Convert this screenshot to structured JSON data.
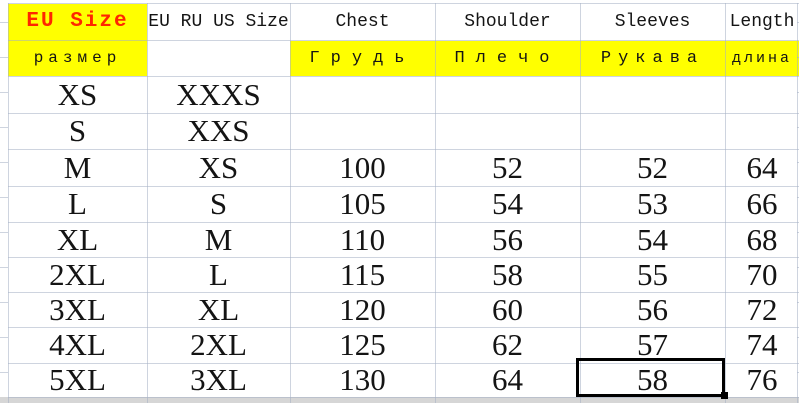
{
  "table": {
    "title_semantic": "clothing size chart",
    "header": {
      "eu_size": "EU Size",
      "eu_size_ru": "размер",
      "intl": "EU RU US Size",
      "chest": "Chest",
      "chest_ru": "Грудь",
      "shoulder": "Shoulder",
      "shoulder_ru": "Плечо",
      "sleeves": "Sleeves",
      "sleeves_ru": "Рукава",
      "length": "Length",
      "length_ru": "длина"
    },
    "rows": [
      {
        "eu": "XS",
        "intl": "XXXS",
        "chest": "",
        "shoulder": "",
        "sleeves": "",
        "length": ""
      },
      {
        "eu": "S",
        "intl": "XXS",
        "chest": "",
        "shoulder": "",
        "sleeves": "",
        "length": ""
      },
      {
        "eu": "M",
        "intl": "XS",
        "chest": "100",
        "shoulder": "52",
        "sleeves": "52",
        "length": "64"
      },
      {
        "eu": "L",
        "intl": "S",
        "chest": "105",
        "shoulder": "54",
        "sleeves": "53",
        "length": "66"
      },
      {
        "eu": "XL",
        "intl": "M",
        "chest": "110",
        "shoulder": "56",
        "sleeves": "54",
        "length": "68"
      },
      {
        "eu": "2XL",
        "intl": "L",
        "chest": "115",
        "shoulder": "58",
        "sleeves": "55",
        "length": "70"
      },
      {
        "eu": "3XL",
        "intl": "XL",
        "chest": "120",
        "shoulder": "60",
        "sleeves": "56",
        "length": "72"
      },
      {
        "eu": "4XL",
        "intl": "2XL",
        "chest": "125",
        "shoulder": "62",
        "sleeves": "57",
        "length": "74"
      },
      {
        "eu": "5XL",
        "intl": "3XL",
        "chest": "130",
        "shoulder": "64",
        "sleeves": "58",
        "length": "76"
      }
    ],
    "selection": {
      "row_eu": "5XL",
      "column": "Sleeves",
      "value": "58"
    },
    "colors": {
      "header_highlight": "#ffff00",
      "eu_size_text": "#ff2600",
      "grid_line": "#cdd5e0",
      "selection_border": "#000000",
      "bottom_band": "#d6d6d6",
      "text": "#141414"
    }
  }
}
